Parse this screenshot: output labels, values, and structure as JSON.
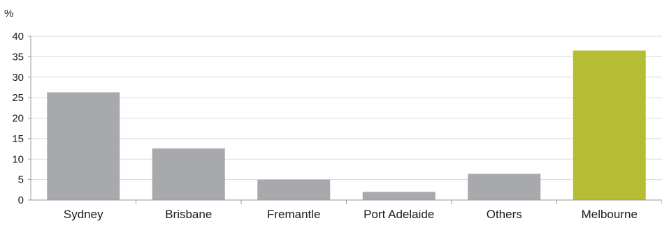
{
  "chart_data": {
    "type": "bar",
    "title": "",
    "xlabel": "",
    "ylabel": "%",
    "categories": [
      "Sydney",
      "Brisbane",
      "Fremantle",
      "Port Adelaide",
      "Others",
      "Melbourne"
    ],
    "values": [
      26.3,
      12.6,
      5.0,
      2.0,
      6.4,
      36.5
    ],
    "ylim": [
      0,
      40
    ],
    "yticks": [
      "0",
      "5",
      "10",
      "15",
      "20",
      "25",
      "30",
      "35",
      "40"
    ],
    "grid": true,
    "legend": "none",
    "colors": {
      "default_bar": "#a7a9ac",
      "highlight_bar": "#b5bd32",
      "axis": "#9a9a9a",
      "grid": "#d9d9d9",
      "text": "#1a1a1a"
    },
    "highlight_category": "Melbourne"
  }
}
